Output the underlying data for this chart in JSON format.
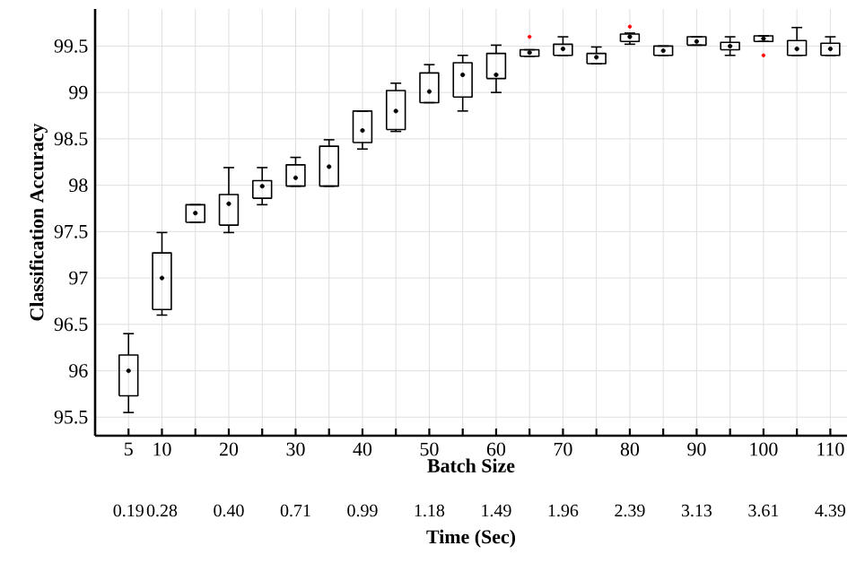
{
  "chart_data": {
    "type": "box",
    "xlabel": "Batch Size",
    "x2label": "Time (Sec)",
    "ylabel": "Classification Accuracy",
    "x": [
      5,
      10,
      15,
      20,
      25,
      30,
      35,
      40,
      45,
      50,
      55,
      60,
      65,
      70,
      75,
      80,
      85,
      90,
      95,
      100,
      105,
      110
    ],
    "boxes": [
      {
        "low": 95.55,
        "q1": 95.73,
        "median": 96.0,
        "q3": 96.17,
        "high": 96.4
      },
      {
        "low": 96.6,
        "q1": 96.66,
        "median": 97.0,
        "q3": 97.27,
        "high": 97.49
      },
      {
        "low": 97.6,
        "q1": 97.6,
        "median": 97.7,
        "q3": 97.79,
        "high": 97.79
      },
      {
        "low": 97.49,
        "q1": 97.57,
        "median": 97.8,
        "q3": 97.9,
        "high": 98.19
      },
      {
        "low": 97.79,
        "q1": 97.86,
        "median": 97.99,
        "q3": 98.05,
        "high": 98.19
      },
      {
        "low": 97.99,
        "q1": 97.99,
        "median": 98.08,
        "q3": 98.22,
        "high": 98.3
      },
      {
        "low": 97.99,
        "q1": 97.99,
        "median": 98.2,
        "q3": 98.42,
        "high": 98.49
      },
      {
        "low": 98.39,
        "q1": 98.46,
        "median": 98.59,
        "q3": 98.8,
        "high": 98.8
      },
      {
        "low": 98.58,
        "q1": 98.6,
        "median": 98.8,
        "q3": 99.02,
        "high": 99.1
      },
      {
        "low": 98.89,
        "q1": 98.89,
        "median": 99.01,
        "q3": 99.21,
        "high": 99.3
      },
      {
        "low": 98.8,
        "q1": 98.95,
        "median": 99.19,
        "q3": 99.32,
        "high": 99.4
      },
      {
        "low": 99.0,
        "q1": 99.15,
        "median": 99.19,
        "q3": 99.42,
        "high": 99.51
      },
      {
        "low": 99.39,
        "q1": 99.39,
        "median": 99.43,
        "q3": 99.46,
        "high": 99.46,
        "outliers": [
          99.6
        ]
      },
      {
        "low": 99.4,
        "q1": 99.4,
        "median": 99.47,
        "q3": 99.52,
        "high": 99.6
      },
      {
        "low": 99.31,
        "q1": 99.31,
        "median": 99.38,
        "q3": 99.42,
        "high": 99.49
      },
      {
        "low": 99.52,
        "q1": 99.55,
        "median": 99.6,
        "q3": 99.63,
        "high": 99.64,
        "outliers": [
          99.71
        ]
      },
      {
        "low": 99.4,
        "q1": 99.4,
        "median": 99.45,
        "q3": 99.5,
        "high": 99.5
      },
      {
        "low": 99.51,
        "q1": 99.51,
        "median": 99.55,
        "q3": 99.6,
        "high": 99.6
      },
      {
        "low": 99.4,
        "q1": 99.46,
        "median": 99.5,
        "q3": 99.54,
        "high": 99.6
      },
      {
        "low": 99.55,
        "q1": 99.55,
        "median": 99.58,
        "q3": 99.61,
        "high": 99.61,
        "outliers": [
          99.4
        ]
      },
      {
        "low": 99.4,
        "q1": 99.4,
        "median": 99.47,
        "q3": 99.56,
        "high": 99.7
      },
      {
        "low": 99.4,
        "q1": 99.4,
        "median": 99.47,
        "q3": 99.53,
        "high": 99.6
      }
    ],
    "xlim": [
      0,
      112.5
    ],
    "ylim": [
      95.3,
      99.9
    ],
    "xticks": [
      5,
      10,
      {
        "value": 15,
        "label": null
      },
      20,
      {
        "value": 25,
        "label": null
      },
      30,
      {
        "value": 35,
        "label": null
      },
      40,
      {
        "value": 45,
        "label": null
      },
      50,
      {
        "value": 55,
        "label": null
      },
      60,
      {
        "value": 65,
        "label": null
      },
      70,
      {
        "value": 75,
        "label": null
      },
      80,
      {
        "value": 85,
        "label": null
      },
      90,
      {
        "value": 95,
        "label": null
      },
      100,
      {
        "value": 105,
        "label": null
      },
      110
    ],
    "yticks": [
      95.5,
      96,
      96.5,
      97,
      97.5,
      98,
      98.5,
      99,
      99.5
    ],
    "annotations": [
      "0.19",
      "0.28",
      "0.40",
      "0.71",
      "0.99",
      "1.18",
      "1.49",
      "1.96",
      "2.39",
      "3.13",
      "3.61",
      "4.39"
    ],
    "grid": true
  }
}
